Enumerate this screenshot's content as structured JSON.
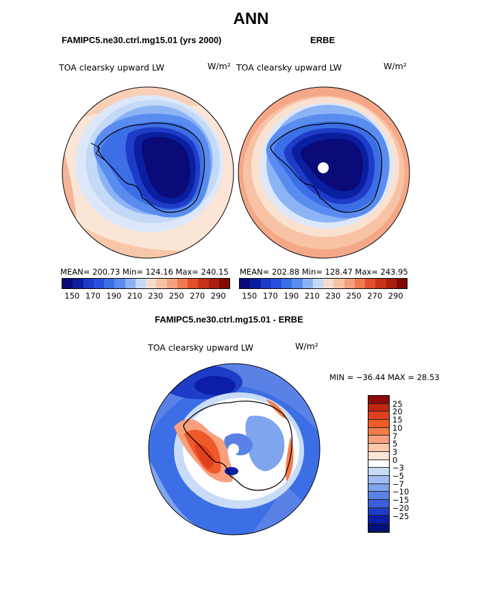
{
  "page": {
    "title": "ANN"
  },
  "panels": [
    {
      "case_title": "FAMIPC5.ne30.ctrl.mg15.01 (yrs 2000)",
      "variable": "TOA clearsky upward LW",
      "units": "W/m²",
      "stats": "MEAN= 200.73   Min= 124.16   Max= 240.15"
    },
    {
      "case_title": "ERBE",
      "variable": "TOA clearsky upward LW",
      "units": "W/m²",
      "stats": "MEAN= 202.88   Min= 128.47   Max= 243.95"
    },
    {
      "case_title": "FAMIPC5.ne30.ctrl.mg15.01 - ERBE",
      "variable": "TOA clearsky upward LW",
      "units": "W/m²",
      "stats": "MIN = −36.44 MAX =   28.53"
    }
  ],
  "chart_data": [
    {
      "type": "heatmap",
      "projection": "south polar stereographic",
      "title": "TOA clearsky upward LW",
      "units": "W/m²",
      "mean": 200.73,
      "min": 124.16,
      "max": 240.15,
      "colorbar": {
        "levels": [
          150,
          160,
          170,
          180,
          190,
          200,
          210,
          220,
          230,
          240,
          250,
          260,
          270,
          280,
          290
        ],
        "tick_labels": [
          "150",
          "170",
          "190",
          "210",
          "230",
          "250",
          "270",
          "290"
        ],
        "colors": [
          "#0a0a78",
          "#0a1ea0",
          "#1e3cc8",
          "#2850dc",
          "#3c6ee6",
          "#5a8cf0",
          "#8cb4f5",
          "#c3d9f7",
          "#f5dccd",
          "#f8c3a5",
          "#f5a082",
          "#f07850",
          "#e1502d",
          "#c83219",
          "#aa1e0f",
          "#820a05"
        ]
      },
      "field_description_values": {
        "antarctic_interior": 140,
        "coast": 190,
        "ocean_60S": 215,
        "ocean_40S": 225
      }
    },
    {
      "type": "heatmap",
      "projection": "south polar stereographic",
      "title": "TOA clearsky upward LW",
      "units": "W/m²",
      "mean": 202.88,
      "min": 128.47,
      "max": 243.95,
      "colorbar": {
        "levels": [
          150,
          160,
          170,
          180,
          190,
          200,
          210,
          220,
          230,
          240,
          250,
          260,
          270,
          280,
          290
        ],
        "tick_labels": [
          "150",
          "170",
          "190",
          "210",
          "230",
          "250",
          "270",
          "290"
        ]
      },
      "field_description_values": {
        "antarctic_interior": 140,
        "coast": 185,
        "ocean_60S": 210,
        "ocean_40S": 240
      }
    },
    {
      "type": "heatmap",
      "projection": "south polar stereographic",
      "title": "TOA clearsky upward LW",
      "units": "W/m²",
      "min": -36.44,
      "max": 28.53,
      "colorbar": {
        "levels": [
          -25,
          -20,
          -15,
          -10,
          -7,
          -5,
          -3,
          0,
          3,
          5,
          7,
          10,
          15,
          20,
          25
        ],
        "tick_labels": [
          "25",
          "20",
          "15",
          "10",
          "7",
          "5",
          "3",
          "0",
          "−3",
          "−5",
          "−7",
          "−10",
          "−15",
          "−20",
          "−25"
        ],
        "colors_top_to_bottom": [
          "#8b0a0a",
          "#c0250f",
          "#e1401e",
          "#f05a28",
          "#f57d4b",
          "#f8a07d",
          "#fbc8aa",
          "#fde6d8",
          "#ffffff",
          "#c8dcf8",
          "#a0bef2",
          "#7ea5ee",
          "#5a82e6",
          "#3c5fdc",
          "#1e3cc8",
          "#0a1ea8",
          "#05107a"
        ]
      }
    }
  ]
}
